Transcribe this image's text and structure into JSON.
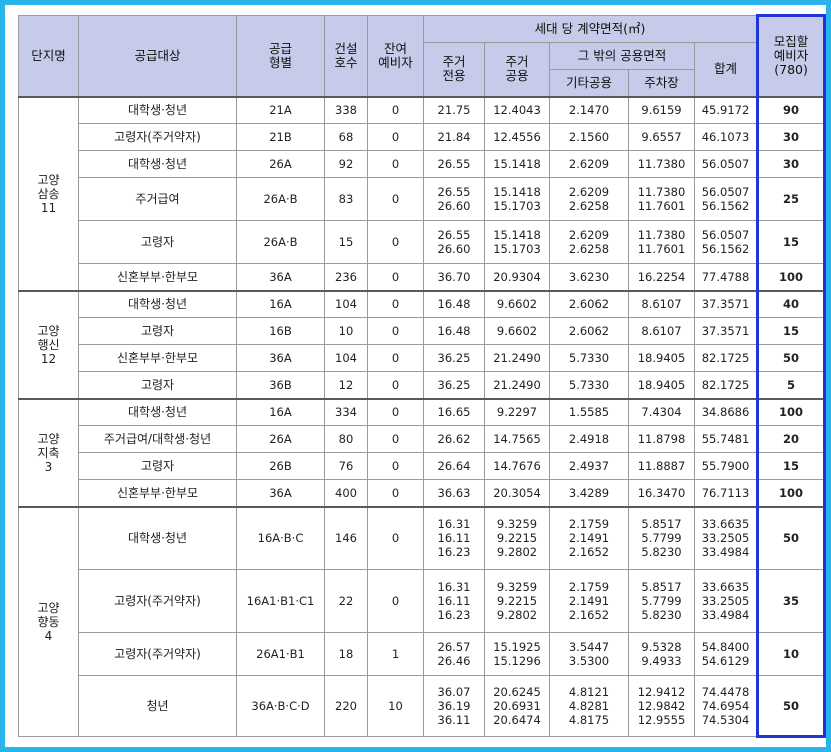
{
  "headers": {
    "complex": "단지명",
    "target": "공급대상",
    "type": "공급\n형별",
    "units": "건설\n호수",
    "remaining": "잔여\n예비자",
    "area_group": "세대 당 계약면적(㎡)",
    "res_exclusive": "주거\n전용",
    "res_common": "주거\n공용",
    "other_common_group": "그 밖의 공용면적",
    "etc_common": "기타공용",
    "parking": "주차장",
    "total": "합계",
    "recruit": "모집할\n예비자\n(780)"
  },
  "groups": [
    {
      "name": "고양\n삼송\n11",
      "rows": [
        {
          "target": "대학생·청년",
          "type": "21A",
          "units": "338",
          "remaining": "0",
          "excl": "21.75",
          "common": "12.4043",
          "etc": "2.1470",
          "parking": "9.6159",
          "total": "45.9172",
          "recruit": "90"
        },
        {
          "target": "고령자(주거약자)",
          "type": "21B",
          "units": "68",
          "remaining": "0",
          "excl": "21.84",
          "common": "12.4556",
          "etc": "2.1560",
          "parking": "9.6557",
          "total": "46.1073",
          "recruit": "30"
        },
        {
          "target": "대학생·청년",
          "type": "26A",
          "units": "92",
          "remaining": "0",
          "excl": "26.55",
          "common": "15.1418",
          "etc": "2.6209",
          "parking": "11.7380",
          "total": "56.0507",
          "recruit": "30"
        },
        {
          "target": "주거급여",
          "type": "26A·B",
          "units": "83",
          "remaining": "0",
          "excl": "26.55\n26.60",
          "common": "15.1418\n15.1703",
          "etc": "2.6209\n2.6258",
          "parking": "11.7380\n11.7601",
          "total": "56.0507\n56.1562",
          "recruit": "25"
        },
        {
          "target": "고령자",
          "type": "26A·B",
          "units": "15",
          "remaining": "0",
          "excl": "26.55\n26.60",
          "common": "15.1418\n15.1703",
          "etc": "2.6209\n2.6258",
          "parking": "11.7380\n11.7601",
          "total": "56.0507\n56.1562",
          "recruit": "15"
        },
        {
          "target": "신혼부부·한부모",
          "type": "36A",
          "units": "236",
          "remaining": "0",
          "excl": "36.70",
          "common": "20.9304",
          "etc": "3.6230",
          "parking": "16.2254",
          "total": "77.4788",
          "recruit": "100"
        }
      ]
    },
    {
      "name": "고양\n행신\n12",
      "rows": [
        {
          "target": "대학생·청년",
          "type": "16A",
          "units": "104",
          "remaining": "0",
          "excl": "16.48",
          "common": "9.6602",
          "etc": "2.6062",
          "parking": "8.6107",
          "total": "37.3571",
          "recruit": "40"
        },
        {
          "target": "고령자",
          "type": "16B",
          "units": "10",
          "remaining": "0",
          "excl": "16.48",
          "common": "9.6602",
          "etc": "2.6062",
          "parking": "8.6107",
          "total": "37.3571",
          "recruit": "15"
        },
        {
          "target": "신혼부부·한부모",
          "type": "36A",
          "units": "104",
          "remaining": "0",
          "excl": "36.25",
          "common": "21.2490",
          "etc": "5.7330",
          "parking": "18.9405",
          "total": "82.1725",
          "recruit": "50"
        },
        {
          "target": "고령자",
          "type": "36B",
          "units": "12",
          "remaining": "0",
          "excl": "36.25",
          "common": "21.2490",
          "etc": "5.7330",
          "parking": "18.9405",
          "total": "82.1725",
          "recruit": "5"
        }
      ]
    },
    {
      "name": "고양\n지축\n3",
      "rows": [
        {
          "target": "대학생·청년",
          "type": "16A",
          "units": "334",
          "remaining": "0",
          "excl": "16.65",
          "common": "9.2297",
          "etc": "1.5585",
          "parking": "7.4304",
          "total": "34.8686",
          "recruit": "100"
        },
        {
          "target": "주거급여/대학생·청년",
          "type": "26A",
          "units": "80",
          "remaining": "0",
          "excl": "26.62",
          "common": "14.7565",
          "etc": "2.4918",
          "parking": "11.8798",
          "total": "55.7481",
          "recruit": "20"
        },
        {
          "target": "고령자",
          "type": "26B",
          "units": "76",
          "remaining": "0",
          "excl": "26.64",
          "common": "14.7676",
          "etc": "2.4937",
          "parking": "11.8887",
          "total": "55.7900",
          "recruit": "15"
        },
        {
          "target": "신혼부부·한부모",
          "type": "36A",
          "units": "400",
          "remaining": "0",
          "excl": "36.63",
          "common": "20.3054",
          "etc": "3.4289",
          "parking": "16.3470",
          "total": "76.7113",
          "recruit": "100"
        }
      ]
    },
    {
      "name": "고양\n향동\n4",
      "rows": [
        {
          "target": "대학생·청년",
          "type": "16A·B·C",
          "units": "146",
          "remaining": "0",
          "excl": "16.31\n16.11\n16.23",
          "common": "9.3259\n9.2215\n9.2802",
          "etc": "2.1759\n2.1491\n2.1652",
          "parking": "5.8517\n5.7799\n5.8230",
          "total": "33.6635\n33.2505\n33.4984",
          "recruit": "50"
        },
        {
          "target": "고령자(주거약자)",
          "type": "16A1·B1·C1",
          "units": "22",
          "remaining": "0",
          "excl": "16.31\n16.11\n16.23",
          "common": "9.3259\n9.2215\n9.2802",
          "etc": "2.1759\n2.1491\n2.1652",
          "parking": "5.8517\n5.7799\n5.8230",
          "total": "33.6635\n33.2505\n33.4984",
          "recruit": "35"
        },
        {
          "target": "고령자(주거약자)",
          "type": "26A1·B1",
          "units": "18",
          "remaining": "1",
          "excl": "26.57\n26.46",
          "common": "15.1925\n15.1296",
          "etc": "3.5447\n3.5300",
          "parking": "9.5328\n9.4933",
          "total": "54.8400\n54.6129",
          "recruit": "10"
        },
        {
          "target": "청년",
          "type": "36A·B·C·D",
          "units": "220",
          "remaining": "10",
          "excl": "36.07\n36.19\n36.11",
          "common": "20.6245\n20.6931\n20.6474",
          "etc": "4.8121\n4.8281\n4.8175",
          "parking": "12.9412\n12.9842\n12.9555",
          "total": "74.4478\n74.6954\n74.5304",
          "recruit": "50"
        }
      ]
    }
  ]
}
